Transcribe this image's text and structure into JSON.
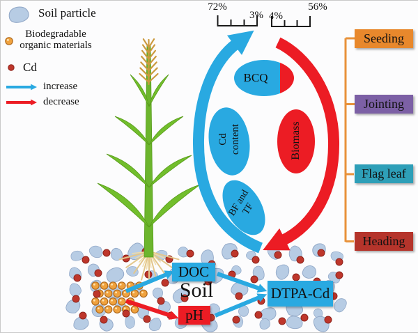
{
  "legend": {
    "soil_particle": "Soil particle",
    "biodegradable_line1": "Biodegradable",
    "biodegradable_line2": "organic materials",
    "cd": "Cd",
    "increase": "increase",
    "decrease": "decrease"
  },
  "scales": {
    "left_start": "72%",
    "left_end": "3%",
    "right_start": "4%",
    "right_end": "56%"
  },
  "cycle": {
    "bcq": "BCQ",
    "cd_content_line1": "Cd",
    "cd_content_line2": "content",
    "biomass": "Biomass",
    "bf_tf_line1": "BF and",
    "bf_tf_line2": "TF"
  },
  "soil": {
    "doc": "DOC",
    "soil": "Soil",
    "ph": "pH",
    "dtpa_cd": "DTPA-Cd"
  },
  "stages": [
    {
      "label": "Seeding",
      "color": "#E8882C"
    },
    {
      "label": "Jointing",
      "color": "#7C60A5"
    },
    {
      "label": "Flag leaf",
      "color": "#2E9FB8"
    },
    {
      "label": "Heading",
      "color": "#B5342B"
    }
  ],
  "colors": {
    "increase_blue": "#29A9E1",
    "decrease_red": "#EC1C24",
    "soil_particle": "#B7CCE4",
    "cd_dot": "#BE362B",
    "organic_dot": "#F0A23E",
    "stage_bracket": "#E8923A",
    "plant_green": "#72BE2C",
    "root_tan": "#E3C78C",
    "wheat_ear": "#CC9A3F"
  }
}
